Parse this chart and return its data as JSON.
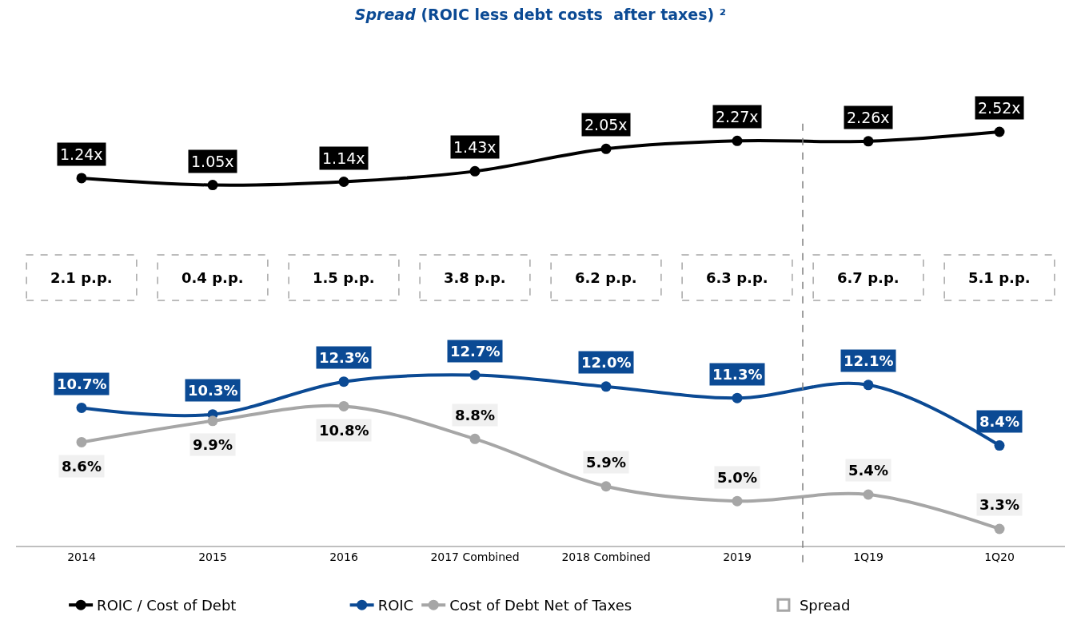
{
  "chart_data": [
    {
      "type": "line",
      "title": "Spread (ROIC less debt costs  after taxes) ²",
      "categories": [
        null,
        null,
        null,
        null,
        null,
        null,
        null,
        null
      ],
      "tick_labels": false,
      "grid": false,
      "legend": "bottom",
      "marker": "circle",
      "line_style": "solid",
      "series": [
        {
          "name": "ROIC / Cost of Debt",
          "color": "#000000",
          "values": [
            1.24,
            1.05,
            1.14,
            1.43,
            2.05,
            2.27,
            2.26,
            2.52
          ],
          "value_labels": [
            "1.24x",
            "1.05x",
            "1.14x",
            "1.43x",
            "2.05x",
            "2.27x",
            "2.26x",
            "2.52x"
          ]
        }
      ]
    },
    {
      "type": "other",
      "legend": "bottom",
      "series": [
        {
          "name": "Spread",
          "color": "#a6a6a6",
          "values": [
            2.1,
            0.4,
            1.5,
            3.8,
            6.2,
            6.3,
            6.7,
            5.1
          ],
          "value_labels": [
            "2.1 p.p.",
            "0.4 p.p.",
            "1.5 p.p.",
            "3.8 p.p.",
            "6.2 p.p.",
            "6.3 p.p.",
            "6.7 p.p.",
            "5.1 p.p."
          ]
        }
      ]
    },
    {
      "type": "line",
      "categories": [
        "2014",
        "2015",
        "2016",
        "2017 Combined",
        "2018 Combined",
        "2019",
        "1Q19",
        "1Q20"
      ],
      "tick_labels": "x",
      "grid": false,
      "legend": "bottom",
      "marker": "circle",
      "line_style": "solid",
      "series": [
        {
          "name": "ROIC",
          "color": "#0b4a94",
          "values": [
            10.7,
            10.3,
            12.3,
            12.7,
            12.0,
            11.3,
            12.1,
            8.4
          ],
          "value_labels": [
            "10.7%",
            "10.3%",
            "12.3%",
            "12.7%",
            "12.0%",
            "11.3%",
            "12.1%",
            "8.4%"
          ]
        },
        {
          "name": "Cost of Debt Net of Taxes",
          "color": "#a6a6a6",
          "values": [
            8.6,
            9.9,
            10.8,
            8.8,
            5.9,
            5.0,
            5.4,
            3.3
          ],
          "value_labels": [
            "8.6%",
            "9.9%",
            "10.8%",
            "8.8%",
            "5.9%",
            "5.0%",
            "5.4%",
            "3.3%"
          ]
        }
      ]
    }
  ]
}
